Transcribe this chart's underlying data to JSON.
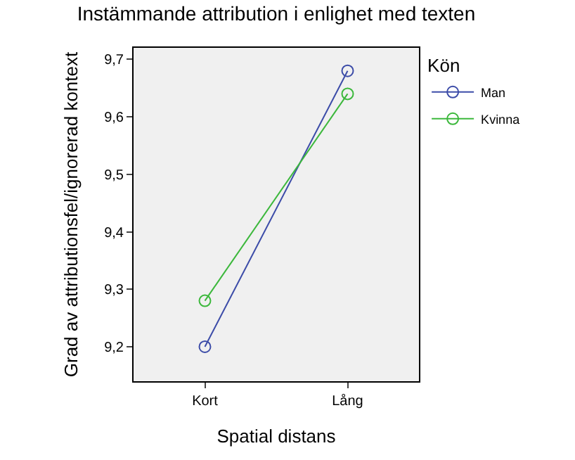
{
  "chart_data": {
    "type": "line",
    "title": "Instämmande attribution i enlighet med texten",
    "xlabel": "Spatial distans",
    "ylabel": "Grad av attributionsfel/ignorerad kontext",
    "legend_title": "Kön",
    "categories": [
      "Kort",
      "Lång"
    ],
    "series": [
      {
        "name": "Man",
        "color": "#3c4ca8",
        "values": [
          9.2,
          9.68
        ]
      },
      {
        "name": "Kvinna",
        "color": "#3cb83c",
        "values": [
          9.28,
          9.64
        ]
      }
    ],
    "ylim": [
      9.14,
      9.72
    ],
    "yticks": [
      {
        "value": 9.2,
        "label": "9,2"
      },
      {
        "value": 9.3,
        "label": "9,3"
      },
      {
        "value": 9.4,
        "label": "9,4"
      },
      {
        "value": 9.5,
        "label": "9,5"
      },
      {
        "value": 9.6,
        "label": "9,6"
      },
      {
        "value": 9.7,
        "label": "9,7"
      }
    ],
    "grid": false,
    "legend": "right",
    "marker": "circle",
    "line_style": "solid"
  }
}
